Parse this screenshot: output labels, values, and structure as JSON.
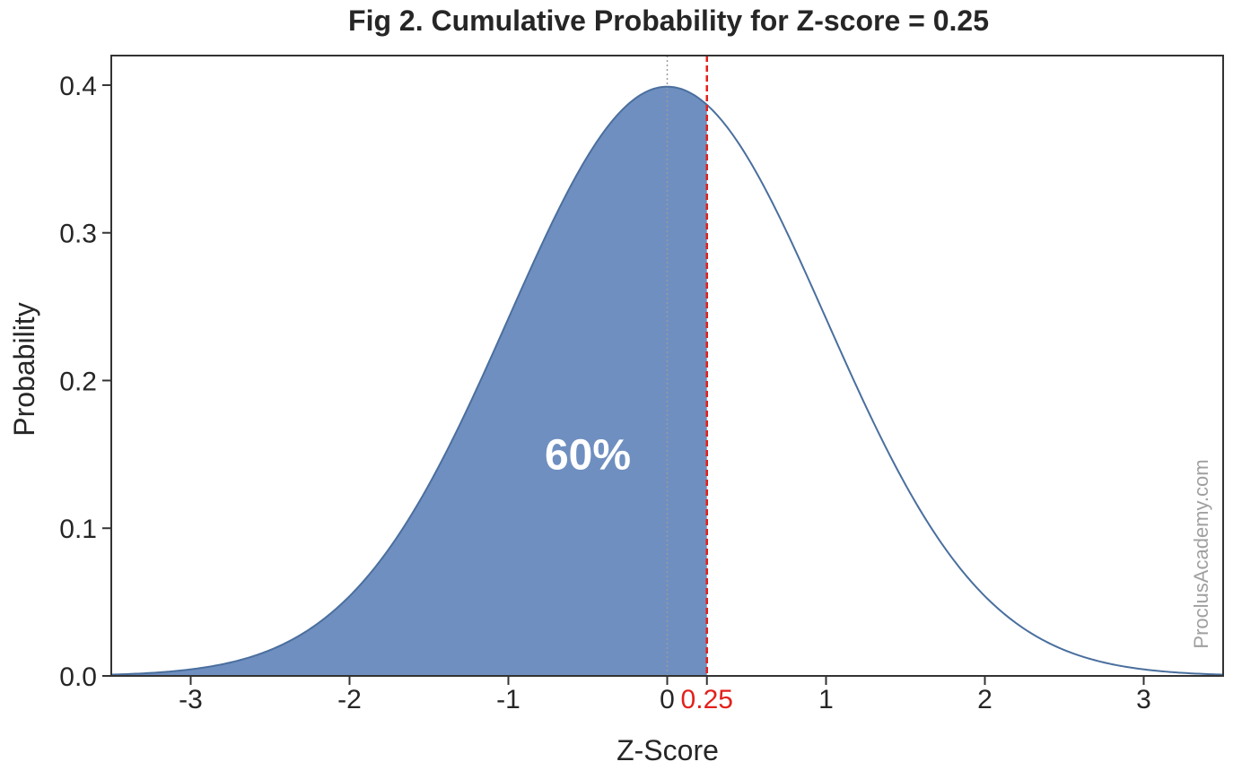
{
  "chart_data": {
    "type": "area",
    "title": "Fig 2. Cumulative Probability for Z-score = 0.25",
    "xlabel": "Z-Score",
    "ylabel": "Probability",
    "xlim": [
      -3.5,
      3.5
    ],
    "ylim": [
      0,
      0.42
    ],
    "xticks": [
      -3,
      -2,
      -1,
      0,
      1,
      2,
      3
    ],
    "xtick_labels": [
      "-3",
      "-2",
      "-1",
      "0",
      "1",
      "2",
      "3"
    ],
    "yticks": [
      0.0,
      0.1,
      0.2,
      0.3,
      0.4
    ],
    "ytick_labels": [
      "0.0",
      "0.1",
      "0.2",
      "0.3",
      "0.4"
    ],
    "distribution": "standard normal",
    "mean": 0,
    "std": 1,
    "z_score": 0.25,
    "z_score_label": "0.25",
    "shaded_region": [
      -3.5,
      0.25
    ],
    "shaded_percent_label": "60%",
    "grid": false,
    "colors": {
      "curve": "#4a6f9e",
      "shaded_fill": "#6f8fc0",
      "z_line": "#e3201b",
      "mean_line": "#9a9a9a",
      "axes": "#333333",
      "text": "#262626",
      "watermark": "#a0a0a0"
    }
  },
  "watermark": "ProclusAcademy.com"
}
